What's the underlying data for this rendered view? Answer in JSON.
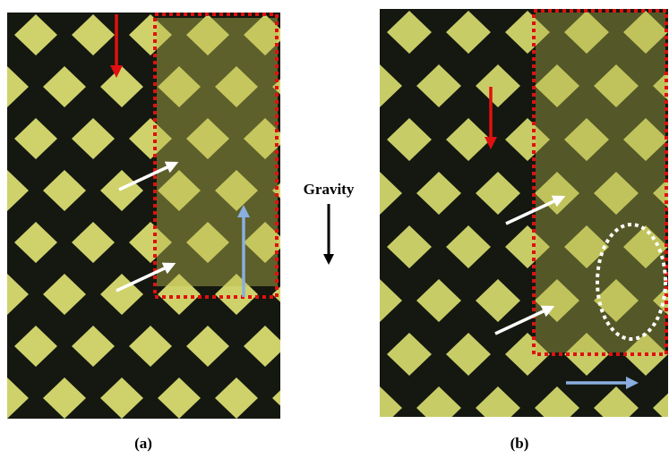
{
  "panels": [
    {
      "label": "(a)"
    },
    {
      "label": "(b)"
    }
  ],
  "gravity_label": "Gravity"
}
